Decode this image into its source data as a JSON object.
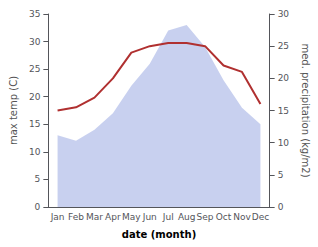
{
  "chart_data": {
    "type": "line",
    "xlabel": "date (month)",
    "ylabel": "max temp (C)",
    "y2label": "med. precipitation (kg/m2)",
    "categories": [
      "Jan",
      "Feb",
      "Mar",
      "Apr",
      "May",
      "Jun",
      "Jul",
      "Aug",
      "Sep",
      "Oct",
      "Nov",
      "Dec"
    ],
    "series": [
      {
        "type": "area",
        "color": "#b0bce8",
        "values": [
          13,
          12,
          14,
          17,
          22,
          26,
          32,
          33,
          29,
          23,
          18,
          15
        ]
      },
      {
        "type": "line",
        "color": "#b03030",
        "axis": "y2",
        "values": [
          15,
          15.5,
          17,
          20,
          24,
          25,
          25.5,
          25.5,
          25,
          22,
          21,
          16
        ]
      }
    ],
    "ylim": [
      0,
      35
    ],
    "yticks": [
      0,
      5,
      10,
      15,
      20,
      25,
      30,
      35
    ],
    "y2lim": [
      0,
      30
    ],
    "y2ticks": [
      0,
      5,
      10,
      15,
      20,
      25,
      30
    ],
    "grid": false
  }
}
